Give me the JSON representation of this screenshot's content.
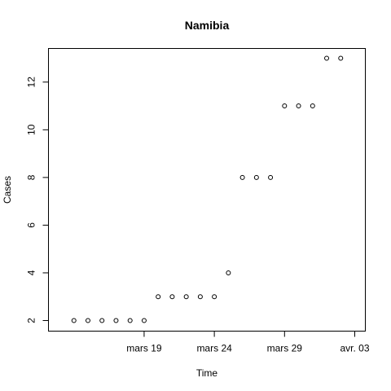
{
  "chart_data": {
    "type": "scatter",
    "title": "Namibia",
    "xlabel": "Time",
    "ylabel": "Cases",
    "x_tick_labels": [
      {
        "date": "2020-03-19",
        "label": "mars 19"
      },
      {
        "date": "2020-03-24",
        "label": "mars 24"
      },
      {
        "date": "2020-03-29",
        "label": "mars 29"
      },
      {
        "date": "2020-04-03",
        "label": "avr. 03"
      }
    ],
    "y_ticks": [
      2,
      4,
      6,
      8,
      10,
      12
    ],
    "xlim": [
      "2020-03-13",
      "2020-04-03"
    ],
    "ylim": [
      2,
      13
    ],
    "series": [
      {
        "points": [
          {
            "x": "2020-03-14",
            "y": 2
          },
          {
            "x": "2020-03-15",
            "y": 2
          },
          {
            "x": "2020-03-16",
            "y": 2
          },
          {
            "x": "2020-03-17",
            "y": 2
          },
          {
            "x": "2020-03-18",
            "y": 2
          },
          {
            "x": "2020-03-19",
            "y": 2
          },
          {
            "x": "2020-03-20",
            "y": 3
          },
          {
            "x": "2020-03-21",
            "y": 3
          },
          {
            "x": "2020-03-22",
            "y": 3
          },
          {
            "x": "2020-03-23",
            "y": 3
          },
          {
            "x": "2020-03-24",
            "y": 3
          },
          {
            "x": "2020-03-25",
            "y": 4
          },
          {
            "x": "2020-03-26",
            "y": 8
          },
          {
            "x": "2020-03-27",
            "y": 8
          },
          {
            "x": "2020-03-28",
            "y": 8
          },
          {
            "x": "2020-03-29",
            "y": 11
          },
          {
            "x": "2020-03-30",
            "y": 11
          },
          {
            "x": "2020-03-31",
            "y": 11
          },
          {
            "x": "2020-04-01",
            "y": 13
          },
          {
            "x": "2020-04-02",
            "y": 13
          }
        ]
      }
    ],
    "grid": false,
    "legend": "none",
    "marker": "open-circle",
    "colors": {
      "foreground": "#000000",
      "background": "#ffffff"
    }
  }
}
